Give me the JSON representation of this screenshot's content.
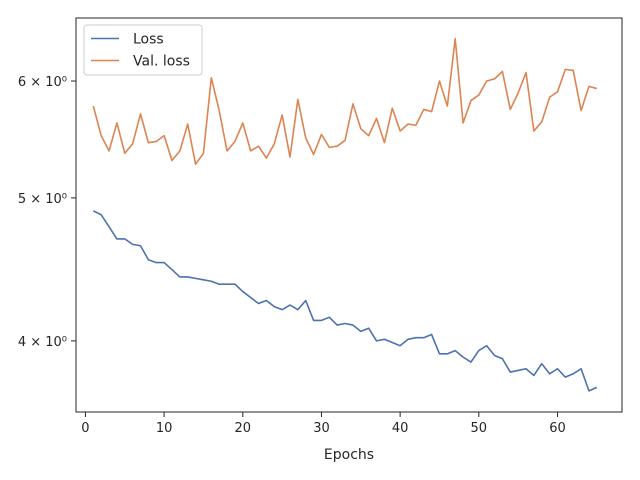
{
  "chart_data": {
    "type": "line",
    "xlabel": "Epochs",
    "ylabel": "",
    "yscale": "log",
    "xlim": [
      -1.2,
      68.2
    ],
    "ylim": [
      3.58,
      6.62
    ],
    "xticks": [
      0,
      10,
      20,
      30,
      40,
      50,
      60
    ],
    "yticks": [
      {
        "value": 4,
        "label": "4 × 10⁰"
      },
      {
        "value": 5,
        "label": "5 × 10⁰"
      },
      {
        "value": 6,
        "label": "6 × 10⁰"
      }
    ],
    "grid": false,
    "legend_position": "top-left",
    "x": [
      1,
      2,
      3,
      4,
      5,
      6,
      7,
      8,
      9,
      10,
      11,
      12,
      13,
      14,
      15,
      16,
      17,
      18,
      19,
      20,
      21,
      22,
      23,
      24,
      25,
      26,
      27,
      28,
      29,
      30,
      31,
      32,
      33,
      34,
      35,
      36,
      37,
      38,
      39,
      40,
      41,
      42,
      43,
      44,
      45,
      46,
      47,
      48,
      49,
      50,
      51,
      52,
      53,
      54,
      55,
      56,
      57,
      58,
      59,
      60,
      61,
      62,
      63,
      64,
      65
    ],
    "series": [
      {
        "name": "Loss",
        "color": "#4c72b0",
        "values": [
          4.9,
          4.87,
          4.78,
          4.69,
          4.69,
          4.65,
          4.64,
          4.54,
          4.52,
          4.52,
          4.47,
          4.42,
          4.42,
          4.41,
          4.4,
          4.39,
          4.37,
          4.37,
          4.37,
          4.32,
          4.28,
          4.24,
          4.26,
          4.22,
          4.2,
          4.23,
          4.2,
          4.26,
          4.13,
          4.13,
          4.15,
          4.1,
          4.11,
          4.1,
          4.06,
          4.08,
          4.0,
          4.01,
          3.99,
          3.97,
          4.01,
          4.02,
          4.02,
          4.04,
          3.92,
          3.92,
          3.94,
          3.9,
          3.87,
          3.94,
          3.97,
          3.91,
          3.89,
          3.81,
          3.82,
          3.83,
          3.79,
          3.86,
          3.8,
          3.83,
          3.78,
          3.8,
          3.83,
          3.7,
          3.72
        ]
      },
      {
        "name": "Val. loss",
        "color": "#dd8452",
        "values": [
          5.77,
          5.51,
          5.38,
          5.62,
          5.36,
          5.44,
          5.7,
          5.45,
          5.46,
          5.51,
          5.3,
          5.38,
          5.61,
          5.27,
          5.36,
          6.03,
          5.73,
          5.38,
          5.46,
          5.62,
          5.38,
          5.42,
          5.32,
          5.44,
          5.69,
          5.33,
          5.83,
          5.49,
          5.35,
          5.52,
          5.41,
          5.42,
          5.47,
          5.79,
          5.57,
          5.51,
          5.66,
          5.45,
          5.75,
          5.55,
          5.61,
          5.6,
          5.74,
          5.72,
          6.0,
          5.77,
          6.41,
          5.62,
          5.82,
          5.87,
          6.0,
          6.02,
          6.09,
          5.74,
          5.89,
          6.08,
          5.55,
          5.63,
          5.85,
          5.9,
          6.11,
          6.1,
          5.73,
          5.95,
          5.93
        ]
      }
    ]
  }
}
